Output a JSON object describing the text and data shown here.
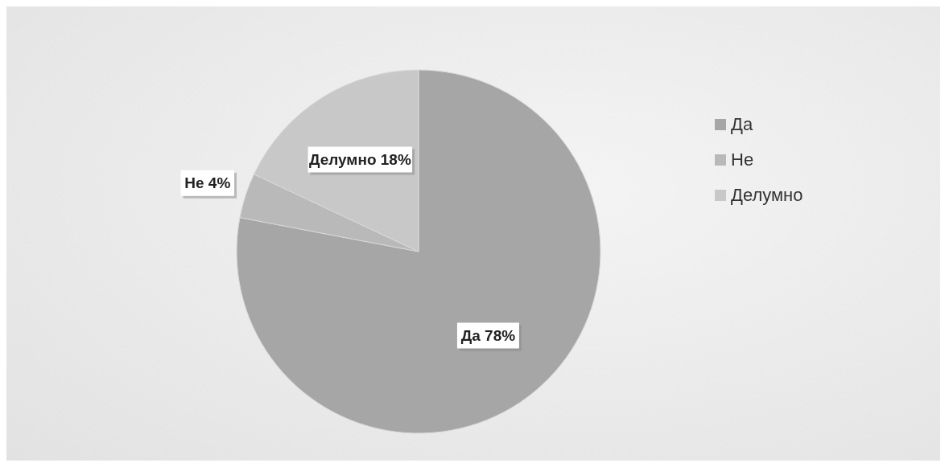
{
  "chart_data": {
    "type": "pie",
    "categories": [
      "Да",
      "Не",
      "Делумно"
    ],
    "values": [
      78,
      4,
      18
    ],
    "value_labels": [
      "78%",
      "4%",
      "18%"
    ],
    "colors": [
      "#a6a6a6",
      "#b9b9b9",
      "#c8c8c8"
    ],
    "legend": "right"
  }
}
